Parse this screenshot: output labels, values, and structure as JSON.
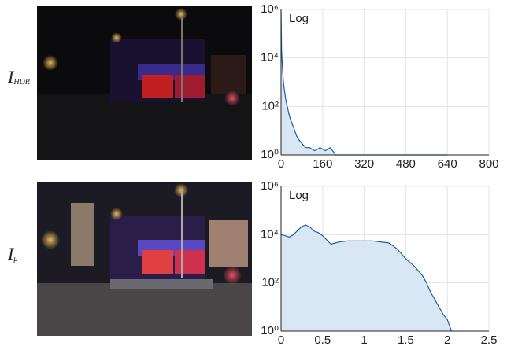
{
  "chart_data": [
    {
      "type": "area",
      "label": {
        "main": "I",
        "sub": "HDR"
      },
      "annotation": "Log",
      "log_scale": true,
      "grid": true,
      "line_color": "#1a5fa0",
      "fill_color": "#d9e7f5",
      "xlim": [
        0,
        800
      ],
      "xticks": [
        0,
        160,
        320,
        480,
        640,
        800
      ],
      "ylim": [
        1,
        1000000
      ],
      "yticks": [
        {
          "value": 1,
          "label": "10⁰"
        },
        {
          "value": 100,
          "label": "10²"
        },
        {
          "value": 10000,
          "label": "10⁴"
        },
        {
          "value": 1000000,
          "label": "10⁶"
        }
      ],
      "x": [
        0,
        2,
        4,
        6,
        8,
        10,
        14,
        18,
        22,
        26,
        30,
        36,
        42,
        50,
        60,
        70,
        80,
        95,
        110,
        130,
        150,
        170,
        190,
        210,
        250,
        300,
        400,
        500,
        600,
        640
      ],
      "values": [
        900000,
        20000,
        8000,
        3000,
        1500,
        800,
        400,
        200,
        120,
        80,
        50,
        30,
        20,
        12,
        6,
        4,
        3,
        2,
        2,
        1.5,
        2,
        1.5,
        2,
        1,
        1,
        1,
        1,
        1,
        1,
        1
      ]
    },
    {
      "type": "area",
      "label": {
        "main": "I",
        "sub": "μ"
      },
      "annotation": "Log",
      "log_scale": true,
      "grid": true,
      "line_color": "#1a5fa0",
      "fill_color": "#d9e7f5",
      "xlim": [
        0,
        2.5
      ],
      "xticks": [
        0,
        0.5,
        1,
        1.5,
        2,
        2.5
      ],
      "ylim": [
        1,
        1000000
      ],
      "yticks": [
        {
          "value": 1,
          "label": "10⁰"
        },
        {
          "value": 100,
          "label": "10²"
        },
        {
          "value": 10000,
          "label": "10⁴"
        },
        {
          "value": 1000000,
          "label": "10⁶"
        }
      ],
      "x": [
        0,
        0.05,
        0.1,
        0.15,
        0.2,
        0.25,
        0.3,
        0.35,
        0.4,
        0.45,
        0.5,
        0.6,
        0.7,
        0.8,
        0.9,
        1.0,
        1.1,
        1.2,
        1.3,
        1.4,
        1.5,
        1.6,
        1.7,
        1.75,
        1.8,
        1.85,
        1.9,
        1.95,
        2.0,
        2.05
      ],
      "values": [
        10000,
        9000,
        8000,
        10000,
        15000,
        22000,
        25000,
        20000,
        14000,
        12000,
        9000,
        4000,
        5000,
        5500,
        5500,
        5500,
        5500,
        5000,
        4500,
        2500,
        1000,
        500,
        200,
        100,
        40,
        20,
        10,
        5,
        3,
        1
      ]
    }
  ]
}
